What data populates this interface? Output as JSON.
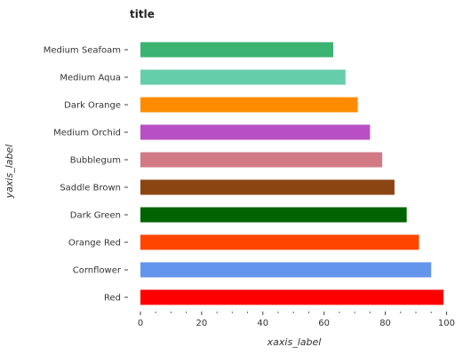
{
  "chart_data": {
    "type": "bar",
    "orientation": "horizontal",
    "title": "title",
    "xlabel": "xaxis_label",
    "ylabel": "yaxis_label",
    "xlim": [
      0,
      100
    ],
    "xticks": [
      0,
      20,
      40,
      60,
      80,
      100
    ],
    "grid": false,
    "legend": "none",
    "categories": [
      "Red",
      "Cornflower",
      "Orange Red",
      "Dark Green",
      "Saddle Brown",
      "Bubblegum",
      "Medium Orchid",
      "Dark Orange",
      "Medium Aqua",
      "Medium Seafoam"
    ],
    "values": [
      99,
      95,
      91,
      87,
      83,
      79,
      75,
      71,
      67,
      63
    ],
    "colors": [
      "#ff0000",
      "#6495ed",
      "#ff4500",
      "#006400",
      "#8b4513",
      "#d17a86",
      "#b84fc4",
      "#ff8c00",
      "#66cdaa",
      "#3cb371"
    ]
  }
}
